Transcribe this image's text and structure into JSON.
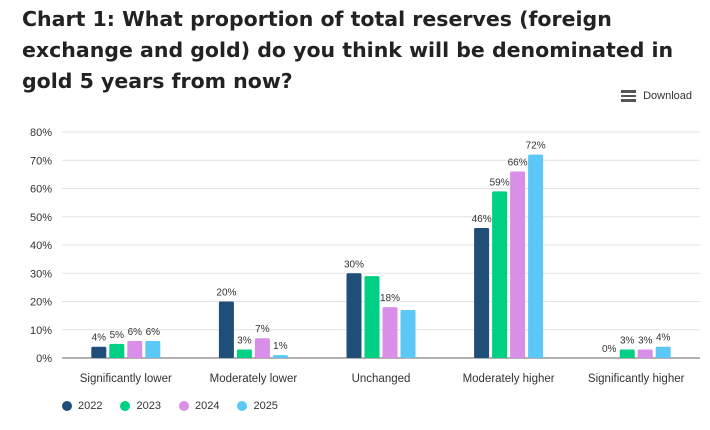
{
  "title": "Chart 1: What proportion of total reserves (foreign exchange and gold) do you think will be denominated in gold 5 years from now?",
  "download_label": "Download",
  "icons": {
    "download": "hamburger-menu-icon"
  },
  "colors": {
    "2022": "#1f4e79",
    "2023": "#00d084",
    "2024": "#d98ee8",
    "2025": "#5bc8f5"
  },
  "chart_data": {
    "type": "bar",
    "categories": [
      "Significantly lower",
      "Moderately lower",
      "Unchanged",
      "Moderately higher",
      "Significantly higher"
    ],
    "series": [
      {
        "name": "2022",
        "values": [
          4,
          20,
          30,
          46,
          0
        ],
        "labels": [
          "4%",
          "20%",
          "30%",
          "46%",
          "0%"
        ]
      },
      {
        "name": "2023",
        "values": [
          5,
          3,
          29,
          59,
          3
        ],
        "labels": [
          "5%",
          "3%",
          "",
          "59%",
          "3%"
        ]
      },
      {
        "name": "2024",
        "values": [
          6,
          7,
          18,
          66,
          3
        ],
        "labels": [
          "6%",
          "7%",
          "18%",
          "66%",
          "3%"
        ]
      },
      {
        "name": "2025",
        "values": [
          6,
          1,
          17,
          72,
          4
        ],
        "labels": [
          "6%",
          "1%",
          "",
          "72%",
          "4%"
        ]
      }
    ],
    "yticks": [
      "0%",
      "10%",
      "20%",
      "30%",
      "40%",
      "50%",
      "60%",
      "70%",
      "80%"
    ],
    "ylim": [
      0,
      80
    ],
    "grid": true,
    "legend_position": "bottom-left"
  }
}
